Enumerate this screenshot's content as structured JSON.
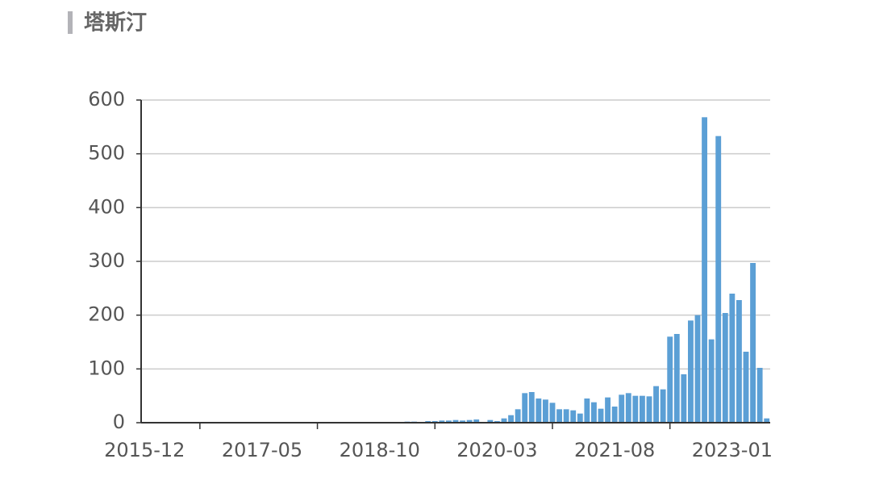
{
  "chart_data": {
    "type": "bar",
    "title": "塔斯汀",
    "categories": [
      "2015-12",
      null,
      null,
      null,
      null,
      null,
      null,
      null,
      null,
      null,
      null,
      null,
      null,
      null,
      null,
      null,
      null,
      "2017-05",
      null,
      null,
      null,
      null,
      null,
      null,
      null,
      null,
      null,
      null,
      null,
      null,
      null,
      null,
      null,
      null,
      "2018-10",
      null,
      null,
      null,
      null,
      null,
      null,
      null,
      null,
      null,
      null,
      null,
      null,
      null,
      null,
      null,
      null,
      "2020-03",
      null,
      null,
      null,
      null,
      null,
      null,
      null,
      null,
      null,
      null,
      null,
      null,
      null,
      null,
      null,
      null,
      "2021-08",
      null,
      null,
      null,
      null,
      null,
      null,
      null,
      null,
      null,
      null,
      null,
      null,
      null,
      null,
      null,
      null,
      "2023-01",
      null,
      null,
      null,
      null,
      null
    ],
    "values": [
      0,
      0,
      0,
      0,
      0,
      0,
      1,
      0,
      0,
      1,
      0,
      0,
      0,
      0,
      1,
      0,
      0,
      0,
      0,
      0,
      0,
      0,
      0,
      0,
      0,
      0,
      0,
      0,
      0,
      0,
      0,
      0,
      1,
      0,
      1,
      1,
      1,
      1,
      2,
      2,
      1,
      3,
      3,
      4,
      4,
      5,
      4,
      5,
      6,
      1,
      5,
      3,
      8,
      14,
      25,
      55,
      57,
      45,
      43,
      37,
      25,
      25,
      23,
      17,
      45,
      38,
      26,
      47,
      30,
      52,
      55,
      50,
      50,
      49,
      68,
      62,
      160,
      165,
      90,
      190,
      200,
      568,
      155,
      533,
      204,
      240,
      228,
      132,
      297,
      102,
      8
    ],
    "color": "#5b9fd5",
    "ylim": [
      0,
      600
    ],
    "yticks": [
      0,
      100,
      200,
      300,
      400,
      500,
      600
    ],
    "grid": true
  }
}
